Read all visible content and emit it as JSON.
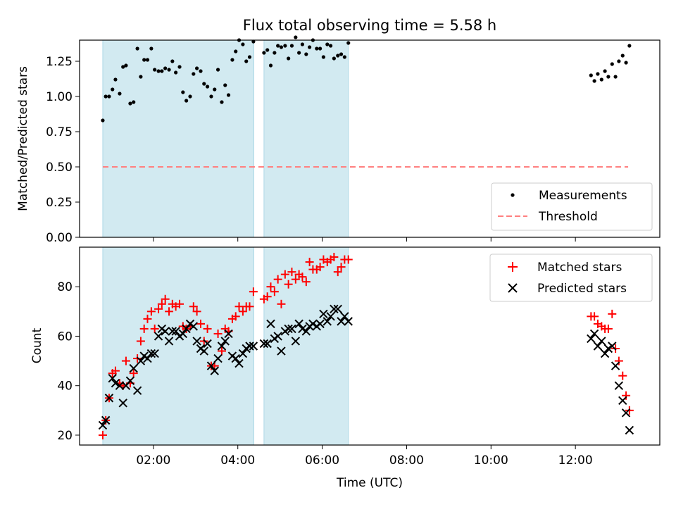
{
  "chart_data": [
    {
      "type": "scatter",
      "title": "Flux total observing time = 5.58 h",
      "ylabel": "Matched/Predicted stars",
      "xlabel": "",
      "xunit": "hours (UTC)",
      "xlim": [
        0.25,
        14.0
      ],
      "ylim": [
        0.0,
        1.4
      ],
      "yticks": [
        0.0,
        0.25,
        0.5,
        0.75,
        1.0,
        1.25
      ],
      "ytick_labels": [
        "0.00",
        "0.25",
        "0.50",
        "0.75",
        "1.00",
        "1.25"
      ],
      "shaded_intervals": [
        [
          0.8,
          4.38
        ],
        [
          4.62,
          6.62
        ]
      ],
      "threshold": {
        "y": 0.5,
        "x_range": [
          0.8,
          13.25
        ],
        "color": "#ff8080"
      },
      "legend_position": "lower right",
      "series": [
        {
          "name": "Measurements",
          "marker": "dot",
          "color": "#000000",
          "points": [
            [
              0.8,
              0.83
            ],
            [
              0.87,
              1.0
            ],
            [
              0.95,
              1.0
            ],
            [
              1.03,
              1.05
            ],
            [
              1.1,
              1.12
            ],
            [
              1.2,
              1.02
            ],
            [
              1.28,
              1.21
            ],
            [
              1.35,
              1.22
            ],
            [
              1.45,
              0.95
            ],
            [
              1.53,
              0.96
            ],
            [
              1.62,
              1.34
            ],
            [
              1.7,
              1.14
            ],
            [
              1.78,
              1.26
            ],
            [
              1.86,
              1.26
            ],
            [
              1.95,
              1.34
            ],
            [
              2.03,
              1.19
            ],
            [
              2.12,
              1.18
            ],
            [
              2.2,
              1.18
            ],
            [
              2.28,
              1.2
            ],
            [
              2.37,
              1.19
            ],
            [
              2.45,
              1.25
            ],
            [
              2.53,
              1.17
            ],
            [
              2.62,
              1.21
            ],
            [
              2.7,
              1.03
            ],
            [
              2.78,
              0.97
            ],
            [
              2.87,
              1.0
            ],
            [
              2.95,
              1.16
            ],
            [
              3.03,
              1.2
            ],
            [
              3.12,
              1.18
            ],
            [
              3.2,
              1.09
            ],
            [
              3.28,
              1.07
            ],
            [
              3.37,
              1.0
            ],
            [
              3.45,
              1.05
            ],
            [
              3.53,
              1.19
            ],
            [
              3.62,
              0.96
            ],
            [
              3.7,
              1.08
            ],
            [
              3.78,
              1.01
            ],
            [
              3.87,
              1.26
            ],
            [
              3.95,
              1.32
            ],
            [
              4.03,
              1.4
            ],
            [
              4.12,
              1.37
            ],
            [
              4.2,
              1.25
            ],
            [
              4.28,
              1.28
            ],
            [
              4.37,
              1.39
            ],
            [
              4.62,
              1.31
            ],
            [
              4.7,
              1.33
            ],
            [
              4.78,
              1.22
            ],
            [
              4.87,
              1.31
            ],
            [
              4.95,
              1.36
            ],
            [
              5.03,
              1.35
            ],
            [
              5.12,
              1.36
            ],
            [
              5.2,
              1.27
            ],
            [
              5.28,
              1.36
            ],
            [
              5.37,
              1.42
            ],
            [
              5.45,
              1.31
            ],
            [
              5.53,
              1.37
            ],
            [
              5.62,
              1.3
            ],
            [
              5.7,
              1.35
            ],
            [
              5.78,
              1.4
            ],
            [
              5.87,
              1.34
            ],
            [
              5.95,
              1.34
            ],
            [
              6.03,
              1.28
            ],
            [
              6.12,
              1.37
            ],
            [
              6.2,
              1.36
            ],
            [
              6.28,
              1.27
            ],
            [
              6.37,
              1.29
            ],
            [
              6.45,
              1.3
            ],
            [
              6.53,
              1.28
            ],
            [
              6.62,
              1.38
            ],
            [
              12.37,
              1.15
            ],
            [
              12.45,
              1.11
            ],
            [
              12.53,
              1.16
            ],
            [
              12.62,
              1.12
            ],
            [
              12.7,
              1.18
            ],
            [
              12.78,
              1.14
            ],
            [
              12.87,
              1.23
            ],
            [
              12.95,
              1.14
            ],
            [
              13.03,
              1.25
            ],
            [
              13.12,
              1.29
            ],
            [
              13.2,
              1.24
            ],
            [
              13.28,
              1.36
            ]
          ]
        },
        {
          "name": "Threshold",
          "marker": "dashed-line",
          "color": "#ff8080",
          "points": [
            [
              0.8,
              0.5
            ],
            [
              13.25,
              0.5
            ]
          ]
        }
      ]
    },
    {
      "type": "scatter",
      "title": "",
      "xlabel": "Time (UTC)",
      "ylabel": "Count",
      "xlim": [
        0.25,
        14.0
      ],
      "ylim": [
        16.0,
        96.0
      ],
      "xticks": [
        2,
        4,
        6,
        8,
        10,
        12
      ],
      "xtick_labels": [
        "02:00",
        "04:00",
        "06:00",
        "08:00",
        "10:00",
        "12:00"
      ],
      "yticks": [
        20,
        40,
        60,
        80
      ],
      "ytick_labels": [
        "20",
        "40",
        "60",
        "80"
      ],
      "shaded_intervals": [
        [
          0.8,
          4.38
        ],
        [
          4.62,
          6.62
        ]
      ],
      "legend_position": "upper right",
      "series": [
        {
          "name": "Matched stars",
          "marker": "plus",
          "color": "#ff0000",
          "points": [
            [
              0.8,
              20
            ],
            [
              0.87,
              26
            ],
            [
              0.95,
              35
            ],
            [
              1.03,
              45
            ],
            [
              1.1,
              46
            ],
            [
              1.2,
              41
            ],
            [
              1.28,
              40
            ],
            [
              1.35,
              50
            ],
            [
              1.45,
              41
            ],
            [
              1.53,
              45
            ],
            [
              1.62,
              51
            ],
            [
              1.7,
              58
            ],
            [
              1.78,
              63
            ],
            [
              1.86,
              67
            ],
            [
              1.95,
              70
            ],
            [
              2.03,
              63
            ],
            [
              2.12,
              71
            ],
            [
              2.2,
              73
            ],
            [
              2.28,
              75
            ],
            [
              2.37,
              70
            ],
            [
              2.45,
              73
            ],
            [
              2.53,
              72
            ],
            [
              2.62,
              73
            ],
            [
              2.7,
              64
            ],
            [
              2.78,
              63
            ],
            [
              2.87,
              64
            ],
            [
              2.95,
              72
            ],
            [
              3.03,
              70
            ],
            [
              3.12,
              65
            ],
            [
              3.2,
              58
            ],
            [
              3.28,
              63
            ],
            [
              3.37,
              48
            ],
            [
              3.45,
              48
            ],
            [
              3.53,
              61
            ],
            [
              3.62,
              54
            ],
            [
              3.7,
              63
            ],
            [
              3.78,
              62
            ],
            [
              3.87,
              67
            ],
            [
              3.95,
              68
            ],
            [
              4.03,
              72
            ],
            [
              4.12,
              70
            ],
            [
              4.2,
              72
            ],
            [
              4.28,
              72
            ],
            [
              4.37,
              78
            ],
            [
              4.62,
              75
            ],
            [
              4.7,
              76
            ],
            [
              4.78,
              80
            ],
            [
              4.87,
              78
            ],
            [
              4.95,
              83
            ],
            [
              5.03,
              73
            ],
            [
              5.12,
              85
            ],
            [
              5.2,
              81
            ],
            [
              5.28,
              86
            ],
            [
              5.37,
              83
            ],
            [
              5.45,
              85
            ],
            [
              5.53,
              84
            ],
            [
              5.62,
              82
            ],
            [
              5.7,
              90
            ],
            [
              5.78,
              87
            ],
            [
              5.87,
              87
            ],
            [
              5.95,
              88
            ],
            [
              6.03,
              91
            ],
            [
              6.12,
              90
            ],
            [
              6.2,
              91
            ],
            [
              6.28,
              92
            ],
            [
              6.37,
              86
            ],
            [
              6.45,
              88
            ],
            [
              6.53,
              91
            ],
            [
              6.62,
              91
            ],
            [
              12.37,
              68
            ],
            [
              12.45,
              68
            ],
            [
              12.53,
              65
            ],
            [
              12.62,
              64
            ],
            [
              12.7,
              63
            ],
            [
              12.78,
              63
            ],
            [
              12.87,
              69
            ],
            [
              12.95,
              55
            ],
            [
              13.03,
              50
            ],
            [
              13.12,
              44
            ],
            [
              13.2,
              36
            ],
            [
              13.28,
              30
            ]
          ]
        },
        {
          "name": "Predicted stars",
          "marker": "x",
          "color": "#000000",
          "points": [
            [
              0.8,
              24
            ],
            [
              0.87,
              26
            ],
            [
              0.95,
              35
            ],
            [
              1.03,
              43
            ],
            [
              1.1,
              41
            ],
            [
              1.2,
              40
            ],
            [
              1.28,
              33
            ],
            [
              1.35,
              40
            ],
            [
              1.45,
              42
            ],
            [
              1.53,
              47
            ],
            [
              1.62,
              38
            ],
            [
              1.7,
              50
            ],
            [
              1.78,
              52
            ],
            [
              1.86,
              51
            ],
            [
              1.95,
              53
            ],
            [
              2.03,
              53
            ],
            [
              2.12,
              60
            ],
            [
              2.2,
              63
            ],
            [
              2.28,
              62
            ],
            [
              2.37,
              58
            ],
            [
              2.45,
              62
            ],
            [
              2.53,
              62
            ],
            [
              2.62,
              60
            ],
            [
              2.7,
              61
            ],
            [
              2.78,
              63
            ],
            [
              2.87,
              65
            ],
            [
              2.95,
              64
            ],
            [
              3.03,
              58
            ],
            [
              3.12,
              55
            ],
            [
              3.2,
              54
            ],
            [
              3.28,
              57
            ],
            [
              3.37,
              48
            ],
            [
              3.45,
              46
            ],
            [
              3.53,
              51
            ],
            [
              3.62,
              56
            ],
            [
              3.7,
              58
            ],
            [
              3.78,
              61
            ],
            [
              3.87,
              52
            ],
            [
              3.95,
              51
            ],
            [
              4.03,
              49
            ],
            [
              4.12,
              53
            ],
            [
              4.2,
              55
            ],
            [
              4.28,
              56
            ],
            [
              4.37,
              56
            ],
            [
              4.62,
              57
            ],
            [
              4.7,
              57
            ],
            [
              4.78,
              65
            ],
            [
              4.87,
              59
            ],
            [
              4.95,
              60
            ],
            [
              5.03,
              54
            ],
            [
              5.12,
              62
            ],
            [
              5.2,
              63
            ],
            [
              5.28,
              63
            ],
            [
              5.37,
              58
            ],
            [
              5.45,
              65
            ],
            [
              5.53,
              63
            ],
            [
              5.62,
              62
            ],
            [
              5.7,
              64
            ],
            [
              5.78,
              65
            ],
            [
              5.87,
              64
            ],
            [
              5.95,
              65
            ],
            [
              6.03,
              69
            ],
            [
              6.12,
              66
            ],
            [
              6.2,
              68
            ],
            [
              6.28,
              71
            ],
            [
              6.37,
              71
            ],
            [
              6.45,
              66
            ],
            [
              6.53,
              68
            ],
            [
              6.62,
              66
            ],
            [
              12.37,
              59
            ],
            [
              12.45,
              61
            ],
            [
              12.53,
              56
            ],
            [
              12.62,
              58
            ],
            [
              12.7,
              53
            ],
            [
              12.78,
              55
            ],
            [
              12.87,
              56
            ],
            [
              12.95,
              48
            ],
            [
              13.03,
              40
            ],
            [
              13.12,
              34
            ],
            [
              13.2,
              29
            ],
            [
              13.28,
              22
            ]
          ]
        }
      ]
    }
  ],
  "colors": {
    "shade": "#add8e6",
    "axes": "#000000",
    "background": "#ffffff"
  }
}
